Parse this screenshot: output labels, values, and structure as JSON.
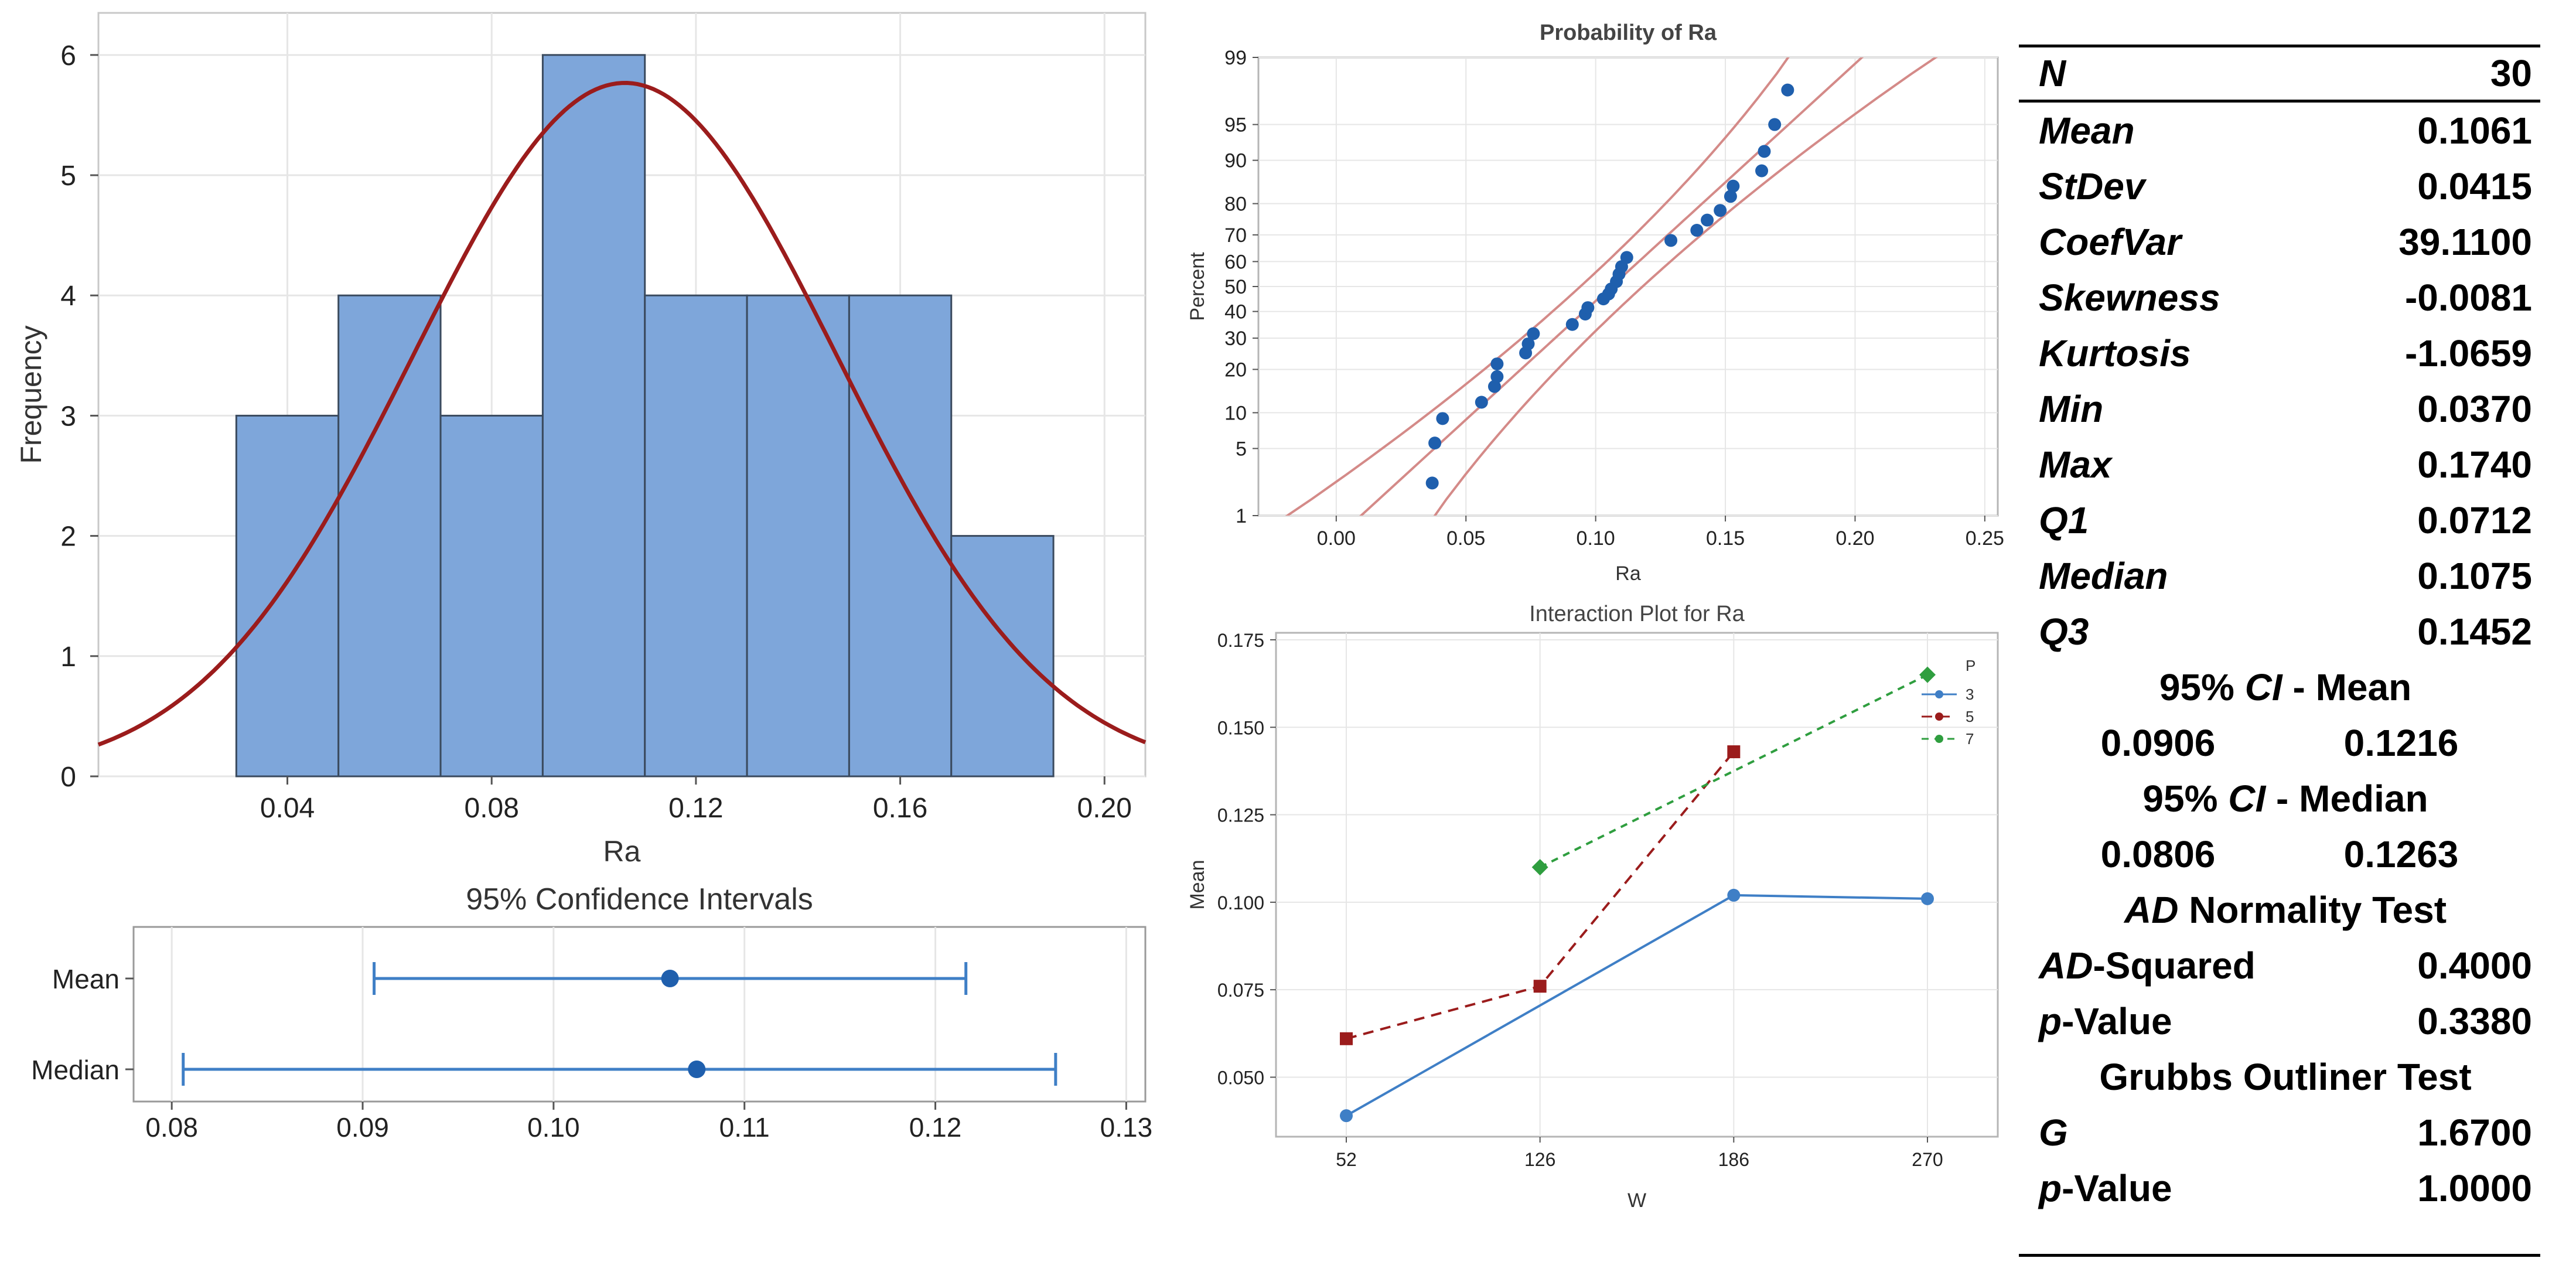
{
  "colors": {
    "bar_fill": "#7ea6da",
    "bar_stroke": "#3a4a5e",
    "curve": "#9b1c1c",
    "ci": "#3f7fc6",
    "point": "#1f5fad",
    "band": "#d48a88",
    "s3": "#3f7fc6",
    "s5": "#9b1c1c",
    "s7": "#2f9e3f"
  },
  "chart_data": [
    {
      "type": "bar",
      "title": "",
      "xlabel": "Ra",
      "ylabel": "Frequency",
      "bins": [
        [
          0.03,
          0.05
        ],
        [
          0.05,
          0.07
        ],
        [
          0.07,
          0.09
        ],
        [
          0.09,
          0.11
        ],
        [
          0.11,
          0.13
        ],
        [
          0.13,
          0.15
        ],
        [
          0.15,
          0.17
        ],
        [
          0.17,
          0.19
        ]
      ],
      "values": [
        3,
        4,
        3,
        6,
        4,
        4,
        4,
        2
      ],
      "xlim": [
        0.003,
        0.208
      ],
      "ylim": [
        0,
        6.35
      ],
      "xticks": [
        0.04,
        0.08,
        0.12,
        0.16,
        0.2
      ],
      "xtick_labels": [
        "0.04",
        "0.08",
        "0.12",
        "0.16",
        "0.20"
      ],
      "yticks": [
        0,
        1,
        2,
        3,
        4,
        5,
        6
      ],
      "ytick_labels": [
        "0",
        "1",
        "2",
        "3",
        "4",
        "5",
        "6"
      ],
      "fit": {
        "mean": 0.1061,
        "stdev": 0.0415,
        "n": 30,
        "binwidth": 0.02
      }
    },
    {
      "type": "interval",
      "title": "95% Confidence Intervals",
      "rows": [
        {
          "name": "Mean",
          "lo": 0.0906,
          "hi": 0.1216,
          "est": 0.1061
        },
        {
          "name": "Median",
          "lo": 0.0806,
          "hi": 0.1263,
          "est": 0.1075
        }
      ],
      "xlim": [
        0.078,
        0.131
      ],
      "xticks": [
        0.08,
        0.09,
        0.1,
        0.11,
        0.12,
        0.13
      ],
      "xtick_labels": [
        "0.08",
        "0.09",
        "0.10",
        "0.11",
        "0.12",
        "0.13"
      ]
    },
    {
      "type": "scatter",
      "title": "Probability of Ra",
      "xlabel": "Ra",
      "ylabel": "Percent",
      "xlim": [
        -0.03,
        0.255
      ],
      "xticks": [
        0.0,
        0.05,
        0.1,
        0.15,
        0.2,
        0.25
      ],
      "xtick_labels": [
        "0.00",
        "0.05",
        "0.10",
        "0.15",
        "0.20",
        "0.25"
      ],
      "yticks": [
        1,
        5,
        10,
        20,
        30,
        40,
        50,
        60,
        70,
        80,
        90,
        95,
        99
      ],
      "ytick_labels": [
        "1",
        "5",
        "10",
        "20",
        "30",
        "40",
        "50",
        "60",
        "70",
        "80",
        "90",
        "95",
        "99"
      ],
      "x": [
        0.037,
        0.038,
        0.041,
        0.056,
        0.061,
        0.062,
        0.062,
        0.073,
        0.074,
        0.076,
        0.091,
        0.096,
        0.097,
        0.103,
        0.105,
        0.106,
        0.108,
        0.109,
        0.11,
        0.112,
        0.129,
        0.139,
        0.143,
        0.148,
        0.152,
        0.153,
        0.164,
        0.165,
        0.169,
        0.174
      ],
      "y": [
        2.3,
        5.6,
        9,
        12,
        15.5,
        18,
        21.6,
        25,
        28,
        31.6,
        35,
        39,
        41.5,
        45,
        47,
        49,
        52,
        55,
        58,
        61.6,
        68,
        71.6,
        75,
        78,
        82,
        84.6,
        88,
        91.5,
        95,
        97.7
      ],
      "mean": 0.1061,
      "stdev": 0.0415,
      "ci_half_width": 0.012
    },
    {
      "type": "line",
      "title": "Interaction Plot for Ra",
      "xlabel": "W",
      "ylabel": "Mean",
      "categories": [
        "52",
        "126",
        "186",
        "270"
      ],
      "ylim": [
        0.033,
        0.177
      ],
      "yticks": [
        0.05,
        0.075,
        0.1,
        0.125,
        0.15,
        0.175
      ],
      "ytick_labels": [
        "0.050",
        "0.075",
        "0.100",
        "0.125",
        "0.150",
        "0.175"
      ],
      "legend_title": "P",
      "series": [
        {
          "name": "3",
          "values": [
            0.039,
            null,
            0.102,
            0.101
          ]
        },
        {
          "name": "5",
          "values": [
            0.061,
            0.076,
            0.143,
            null
          ]
        },
        {
          "name": "7",
          "values": [
            null,
            0.11,
            null,
            0.165
          ]
        }
      ]
    }
  ],
  "stats": {
    "header": {
      "label": "N",
      "value": "30"
    },
    "rows": [
      {
        "label": "Mean",
        "value": "0.1061"
      },
      {
        "label": "StDev",
        "value": "0.0415"
      },
      {
        "label": "CoefVar",
        "value": "39.1100"
      },
      {
        "label": "Skewness",
        "value": "-0.0081"
      },
      {
        "label": "Kurtosis",
        "value": "-1.0659"
      },
      {
        "label": "Min",
        "value": "0.0370"
      },
      {
        "label": "Max",
        "value": "0.1740"
      },
      {
        "label": "Q1",
        "value": "0.0712"
      },
      {
        "label": "Median",
        "value": "0.1075"
      },
      {
        "label": "Q3",
        "value": "0.1452"
      }
    ],
    "ci_mean": {
      "pre": "95% ",
      "em": "CI",
      "post": " - Mean",
      "lo": "0.0906",
      "hi": "0.1216"
    },
    "ci_median": {
      "pre": "95% ",
      "em": "CI",
      "post": " - Median",
      "lo": "0.0806",
      "hi": "0.1263"
    },
    "ad": {
      "em": "AD",
      "post": " Normality Test",
      "sq_em": "AD",
      "sq_post": "-Squared",
      "sq_value": "0.4000",
      "p_em": "p",
      "p_post": "-Value",
      "p_value": "0.3380"
    },
    "grubbs": {
      "title": "Grubbs Outliner Test",
      "g_label": "G",
      "g_value": "1.6700",
      "p_em": "p",
      "p_post": "-Value",
      "p_value": "1.0000"
    }
  }
}
